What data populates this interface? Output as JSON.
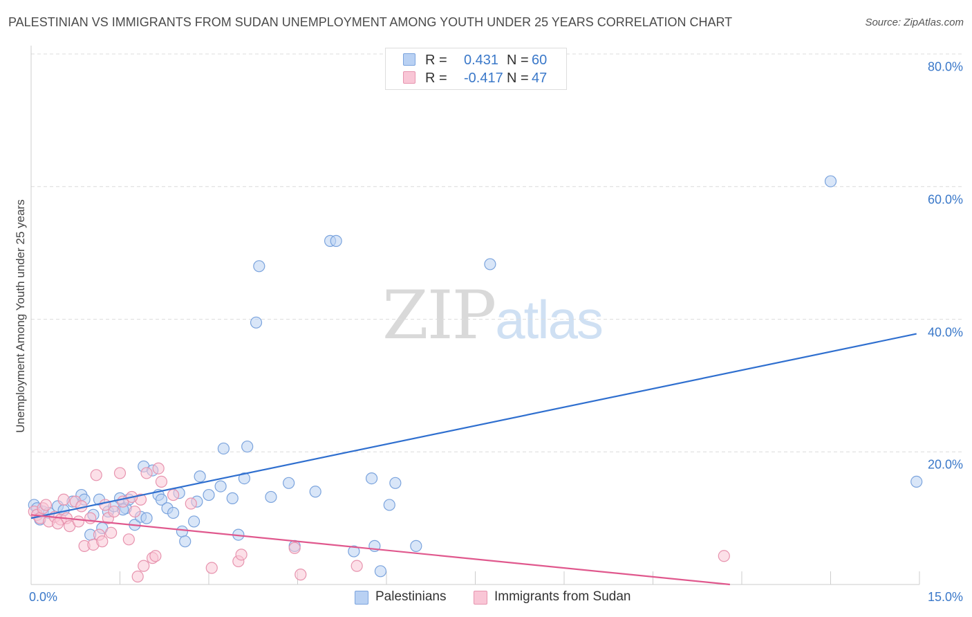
{
  "title": "PALESTINIAN VS IMMIGRANTS FROM SUDAN UNEMPLOYMENT AMONG YOUTH UNDER 25 YEARS CORRELATION CHART",
  "source": "Source: ZipAtlas.com",
  "watermark": {
    "zip": "ZIP",
    "atlas": "atlas"
  },
  "legend": {
    "r_label": "R =",
    "n_label": "N =",
    "rows": [
      {
        "r": "0.431",
        "n": "60",
        "fill": "#b9d1f3",
        "stroke": "#7aa3dd"
      },
      {
        "r": "-0.417",
        "n": "47",
        "fill": "#f9c6d6",
        "stroke": "#e793ae"
      }
    ]
  },
  "chart_data": {
    "type": "scatter",
    "title": "PALESTINIAN VS IMMIGRANTS FROM SUDAN UNEMPLOYMENT AMONG YOUTH UNDER 25 YEARS CORRELATION CHART",
    "xlabel": "",
    "ylabel": "Unemployment Among Youth under 25 years",
    "xlim": [
      0,
      15
    ],
    "ylim": [
      0,
      80
    ],
    "x_tick_labels": [
      "0.0%",
      "15.0%"
    ],
    "y_tick_labels": [
      "20.0%",
      "40.0%",
      "60.0%",
      "80.0%"
    ],
    "y_ticks": [
      20,
      40,
      60,
      80
    ],
    "x_minor_ticks": [
      1.5,
      3,
      4.5,
      6,
      7.5,
      9,
      10.5,
      12,
      13.5,
      15
    ],
    "grid": true,
    "legend_position": "top-center",
    "colors": {
      "text": "#3a78c9",
      "axis_text": "#444444"
    },
    "series": [
      {
        "name": "Palestinians",
        "color": "#7aa3dd",
        "fill": "#b9d1f3",
        "line_color": "#2f6fcf",
        "trend": [
          [
            0,
            10.0
          ],
          [
            14.95,
            37.8
          ]
        ],
        "points": [
          [
            0.05,
            12.0
          ],
          [
            0.1,
            11.5
          ],
          [
            0.2,
            11.0
          ],
          [
            0.3,
            10.8
          ],
          [
            0.45,
            11.8
          ],
          [
            0.55,
            11.2
          ],
          [
            0.7,
            12.5
          ],
          [
            0.85,
            13.5
          ],
          [
            0.9,
            12.8
          ],
          [
            1.0,
            7.5
          ],
          [
            1.05,
            10.5
          ],
          [
            1.15,
            12.8
          ],
          [
            1.2,
            8.5
          ],
          [
            1.3,
            11.0
          ],
          [
            1.4,
            11.8
          ],
          [
            1.5,
            13.0
          ],
          [
            1.6,
            11.5
          ],
          [
            1.65,
            12.8
          ],
          [
            1.75,
            9.0
          ],
          [
            1.85,
            10.2
          ],
          [
            1.9,
            17.8
          ],
          [
            1.95,
            10.0
          ],
          [
            2.05,
            17.2
          ],
          [
            2.15,
            13.5
          ],
          [
            2.2,
            12.8
          ],
          [
            2.3,
            11.5
          ],
          [
            2.4,
            10.8
          ],
          [
            2.5,
            13.8
          ],
          [
            2.55,
            8.0
          ],
          [
            2.6,
            6.5
          ],
          [
            2.75,
            9.5
          ],
          [
            2.8,
            12.5
          ],
          [
            2.85,
            16.3
          ],
          [
            3.0,
            13.5
          ],
          [
            3.2,
            14.8
          ],
          [
            3.25,
            20.5
          ],
          [
            3.4,
            13.0
          ],
          [
            3.5,
            7.5
          ],
          [
            3.6,
            16.0
          ],
          [
            3.65,
            20.8
          ],
          [
            3.8,
            39.5
          ],
          [
            3.85,
            48.0
          ],
          [
            4.05,
            13.2
          ],
          [
            4.35,
            15.3
          ],
          [
            4.45,
            5.8
          ],
          [
            4.8,
            14.0
          ],
          [
            5.05,
            51.8
          ],
          [
            5.15,
            51.8
          ],
          [
            5.45,
            5.0
          ],
          [
            5.75,
            16.0
          ],
          [
            5.8,
            5.8
          ],
          [
            5.9,
            2.0
          ],
          [
            6.05,
            12.0
          ],
          [
            6.15,
            15.3
          ],
          [
            6.5,
            5.8
          ],
          [
            7.75,
            48.3
          ],
          [
            13.5,
            60.8
          ],
          [
            14.95,
            15.5
          ],
          [
            0.15,
            9.8
          ],
          [
            1.55,
            11.3
          ]
        ]
      },
      {
        "name": "Immigrants from Sudan",
        "color": "#e793ae",
        "fill": "#f9c6d6",
        "line_color": "#e0588d",
        "trend": [
          [
            0,
            10.5
          ],
          [
            11.8,
            0.0
          ]
        ],
        "points": [
          [
            0.05,
            11.0
          ],
          [
            0.1,
            10.5
          ],
          [
            0.15,
            10.0
          ],
          [
            0.2,
            11.5
          ],
          [
            0.3,
            9.5
          ],
          [
            0.4,
            10.2
          ],
          [
            0.5,
            9.8
          ],
          [
            0.55,
            12.8
          ],
          [
            0.6,
            10.0
          ],
          [
            0.65,
            8.8
          ],
          [
            0.75,
            12.5
          ],
          [
            0.8,
            9.5
          ],
          [
            0.85,
            11.8
          ],
          [
            0.9,
            5.8
          ],
          [
            1.0,
            10.0
          ],
          [
            1.05,
            6.0
          ],
          [
            1.1,
            16.5
          ],
          [
            1.15,
            7.5
          ],
          [
            1.2,
            6.5
          ],
          [
            1.3,
            10.0
          ],
          [
            1.35,
            7.8
          ],
          [
            1.4,
            11.0
          ],
          [
            1.5,
            16.8
          ],
          [
            1.55,
            12.5
          ],
          [
            1.65,
            6.8
          ],
          [
            1.75,
            11.0
          ],
          [
            1.8,
            1.2
          ],
          [
            1.85,
            12.8
          ],
          [
            1.9,
            2.8
          ],
          [
            1.95,
            16.8
          ],
          [
            2.05,
            4.0
          ],
          [
            2.1,
            4.3
          ],
          [
            2.15,
            17.5
          ],
          [
            2.2,
            15.5
          ],
          [
            2.4,
            13.5
          ],
          [
            3.05,
            2.5
          ],
          [
            3.5,
            3.5
          ],
          [
            3.55,
            4.5
          ],
          [
            4.45,
            5.5
          ],
          [
            4.55,
            1.5
          ],
          [
            5.5,
            2.8
          ],
          [
            11.7,
            4.3
          ],
          [
            0.25,
            12.0
          ],
          [
            0.45,
            9.2
          ],
          [
            1.25,
            12.0
          ],
          [
            1.7,
            13.2
          ],
          [
            2.7,
            12.2
          ]
        ]
      }
    ]
  },
  "bottom_legend": [
    {
      "label": "Palestinians",
      "fill": "#b9d1f3",
      "stroke": "#7aa3dd"
    },
    {
      "label": "Immigrants from Sudan",
      "fill": "#f9c6d6",
      "stroke": "#e793ae"
    }
  ]
}
